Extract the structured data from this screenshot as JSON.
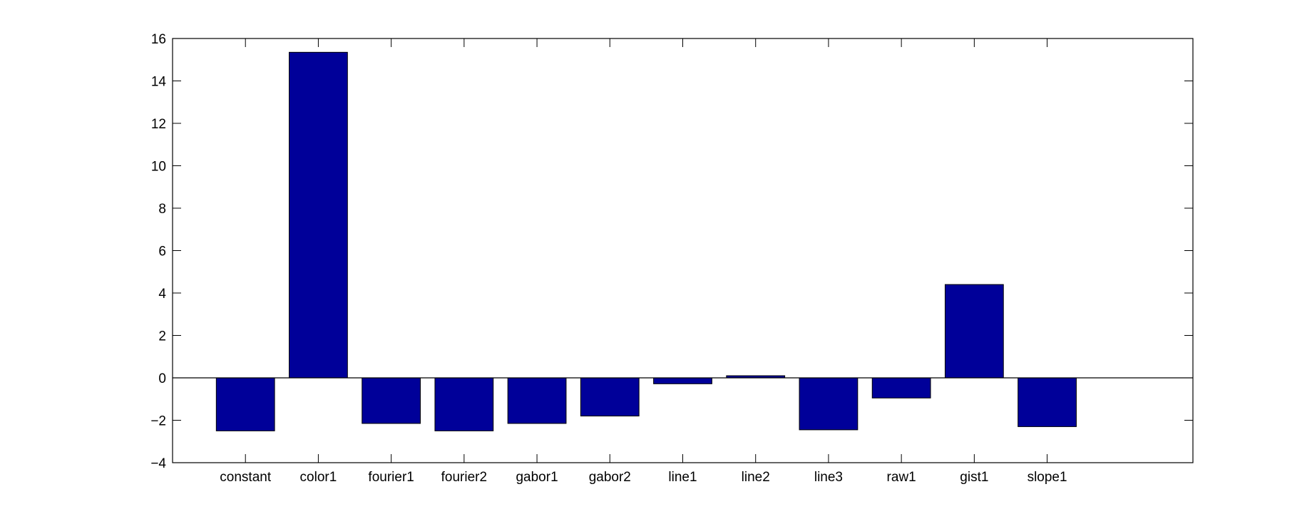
{
  "chart_data": {
    "type": "bar",
    "title": "",
    "xlabel": "",
    "ylabel": "",
    "categories": [
      "constant",
      "color1",
      "fourier1",
      "fourier2",
      "gabor1",
      "gabor2",
      "line1",
      "line2",
      "line3",
      "raw1",
      "gist1",
      "slope1"
    ],
    "values": [
      -2.5,
      15.35,
      -2.15,
      -2.5,
      -2.15,
      -1.8,
      -0.28,
      0.1,
      -2.45,
      -0.95,
      4.4,
      -2.3
    ],
    "ylim": [
      -4,
      16
    ],
    "xlim": [
      0,
      14
    ],
    "yticks": [
      -4,
      -2,
      0,
      2,
      4,
      6,
      8,
      10,
      12,
      14,
      16
    ],
    "ytick_labels": [
      "−4",
      "−2",
      "0",
      "2",
      "4",
      "6",
      "8",
      "10",
      "12",
      "14",
      "16"
    ],
    "bar_color": "#000099",
    "grid": false,
    "legend": "none"
  }
}
